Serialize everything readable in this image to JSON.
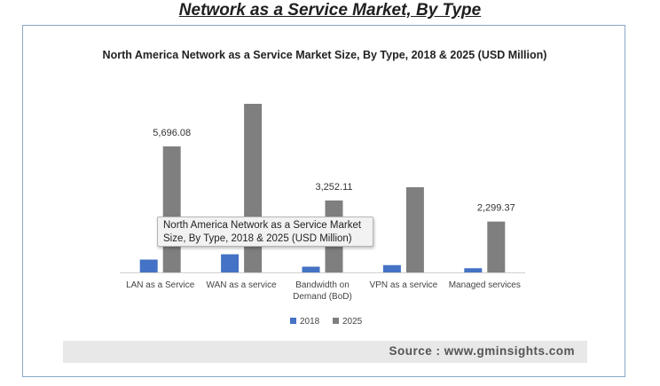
{
  "header": {
    "title": "Network as a Service Market, By Type"
  },
  "tooltip": {
    "text": "North America Network as a Service Market Size, By Type, 2018 & 2025 (USD Million)"
  },
  "source": {
    "text": "Source : www.gminsights.com"
  },
  "colors": {
    "series_2018": "#4472c4",
    "series_2025": "#7f7f7f"
  },
  "chart_data": {
    "type": "bar",
    "title": "North America Network as a Service Market Size, By Type, 2018 & 2025 (USD Million)",
    "categories": [
      "LAN as a Service",
      "WAN as a service",
      "Bandwidth on Demand (BoD)",
      "VPN as a service",
      "Managed services"
    ],
    "category_lines": [
      [
        "LAN as a Service"
      ],
      [
        "WAN as a service"
      ],
      [
        "Bandwidth on",
        "Demand (BoD)"
      ],
      [
        "VPN as a service"
      ],
      [
        "Managed services"
      ]
    ],
    "series": [
      {
        "name": "2018",
        "values": [
          580,
          820,
          260,
          330,
          190
        ]
      },
      {
        "name": "2025",
        "values": [
          5696.08,
          7620,
          3252.11,
          3850,
          2299.37
        ]
      }
    ],
    "data_labels": [
      {
        "series": 1,
        "index": 0,
        "text": "5,696.08"
      },
      {
        "series": 1,
        "index": 2,
        "text": "3,252.11"
      },
      {
        "series": 1,
        "index": 4,
        "text": "2,299.37"
      }
    ],
    "ylim": [
      0,
      7700
    ],
    "grid": false,
    "legend_position": "bottom"
  }
}
